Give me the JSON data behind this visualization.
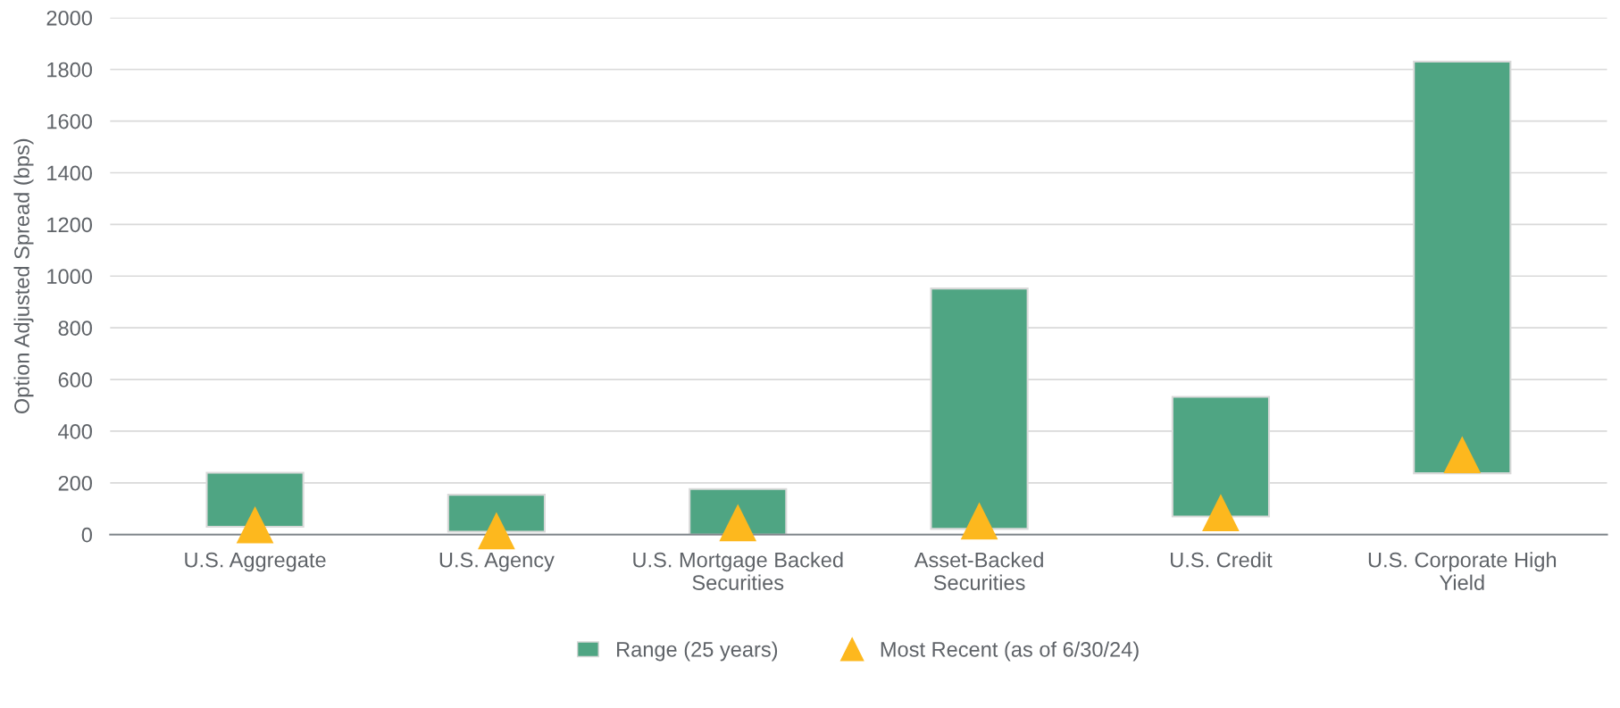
{
  "chart_data": {
    "type": "bar",
    "ylabel": "Option Adjusted Spread (bps)",
    "categories": [
      "U.S. Aggregate",
      "U.S. Agency",
      "U.S. Mortgage Backed\nSecurities",
      "Asset-Backed\nSecurities",
      "U.S. Credit",
      "U.S. Corporate High\nYield"
    ],
    "series": [
      {
        "name": "Range (25 years)",
        "color": "#4fa583",
        "base": [
          30,
          11,
          0,
          22,
          70,
          237
        ],
        "values": [
          209,
          143,
          176,
          930,
          463,
          1593
        ]
      },
      {
        "name": "Most Recent (as of 6/30/24)",
        "color": "#fdb81e",
        "type": "scatter",
        "marker": "triangle",
        "values": [
          38,
          15,
          46,
          53,
          85,
          309
        ]
      }
    ],
    "ylim": [
      0,
      2000
    ],
    "yticks": [
      0,
      200,
      400,
      600,
      800,
      1000,
      1200,
      1400,
      1600,
      1800,
      2000
    ],
    "grid": "y",
    "legend": "bottom"
  }
}
